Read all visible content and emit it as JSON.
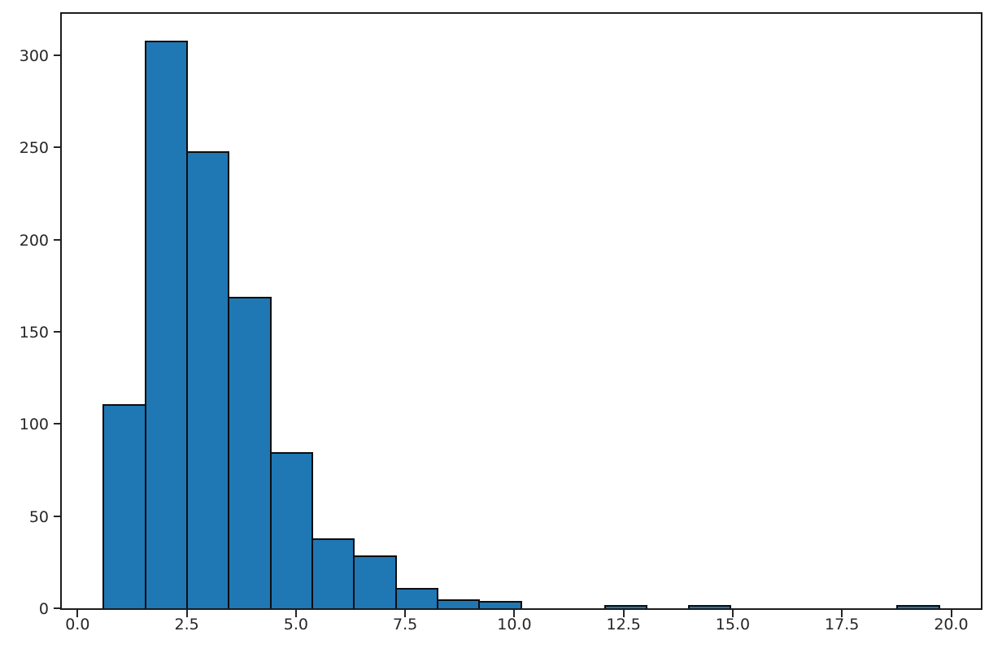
{
  "figure": {
    "background": "#ffffff",
    "plot_background": "#ffffff",
    "spine_color": "#1c1c1c"
  },
  "chart_data": {
    "type": "bar",
    "subtype": "histogram",
    "title": "",
    "xlabel": "",
    "ylabel": "",
    "grid": false,
    "legend": null,
    "n_bins": 20,
    "bin_edges": [
      0.59,
      1.55,
      2.51,
      3.46,
      4.42,
      5.38,
      6.33,
      7.29,
      8.25,
      9.2,
      10.16,
      11.12,
      12.07,
      13.03,
      13.99,
      14.94,
      15.9,
      16.86,
      17.82,
      18.77,
      19.73
    ],
    "counts": [
      110,
      307,
      247,
      168,
      84,
      37,
      28,
      10,
      4,
      3,
      0,
      0,
      1,
      0,
      1,
      0,
      0,
      0,
      0,
      1
    ],
    "xlim": [
      -0.36,
      20.68
    ],
    "ylim": [
      0,
      322.35
    ],
    "xticks": [
      0.0,
      2.5,
      5.0,
      7.5,
      10.0,
      12.5,
      15.0,
      17.5,
      20.0
    ],
    "xtick_labels": [
      "0.0",
      "2.5",
      "5.0",
      "7.5",
      "10.0",
      "12.5",
      "15.0",
      "17.5",
      "20.0"
    ],
    "yticks": [
      0,
      50,
      100,
      150,
      200,
      250,
      300
    ],
    "ytick_labels": [
      "0",
      "50",
      "100",
      "150",
      "200",
      "250",
      "300"
    ],
    "bar_fill": "#1f77b4",
    "bar_edge": "#0d0d0d",
    "tick_color": "#262626",
    "tick_label_color": "#262626"
  }
}
